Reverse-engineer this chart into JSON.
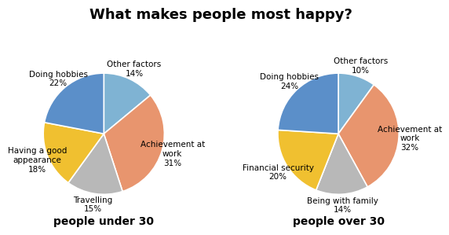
{
  "title": "What makes people most happy?",
  "under30": {
    "labels": [
      "Other factors\n14%",
      "Achievement at\nwork\n31%",
      "Travelling\n15%",
      "Having a good\nappearance\n18%",
      "Doing hobbies\n22%"
    ],
    "values": [
      14,
      31,
      15,
      18,
      22
    ],
    "colors": [
      "#7fb3d3",
      "#e8956e",
      "#b8b8b8",
      "#f0c030",
      "#5b8fc9"
    ],
    "subtitle": "people under 30",
    "startangle": 90
  },
  "over30": {
    "labels": [
      "Other factors\n10%",
      "Achievement at\nwork\n32%",
      "Being with family\n14%",
      "Financial security\n20%",
      "Doing hobbies\n24%"
    ],
    "values": [
      10,
      32,
      14,
      20,
      24
    ],
    "colors": [
      "#7fb3d3",
      "#e8956e",
      "#b8b8b8",
      "#f0c030",
      "#5b8fc9"
    ],
    "subtitle": "people over 30",
    "startangle": 90
  },
  "title_fontsize": 13,
  "label_fontsize": 7.5,
  "subtitle_fontsize": 10,
  "background_color": "#ffffff"
}
